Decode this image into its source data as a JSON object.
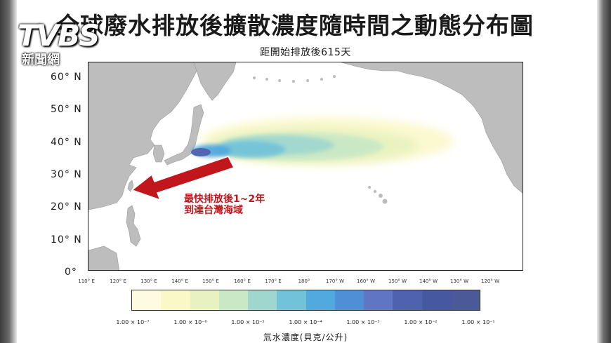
{
  "title": "全球廢水排放後擴散濃度隨時間之動態分布圖",
  "subtitle": "距開始排放後615天",
  "logo": {
    "main": "TVBS",
    "sub": "新聞網"
  },
  "map": {
    "lat_labels": [
      "60° N",
      "50° N",
      "40° N",
      "30° N",
      "20° N",
      "10° N",
      "0°"
    ],
    "lon_labels": [
      "110° E",
      "120° E",
      "130° E",
      "140° E",
      "150° E",
      "160° E",
      "170° E",
      "180°",
      "170° W",
      "160° W",
      "150° W",
      "140° W",
      "130° W",
      "120° W"
    ]
  },
  "annotation": {
    "line1": "最快排放後1~2年",
    "line2": "到達台灣海域",
    "arrow_color": "#c0161c"
  },
  "colorbar": {
    "colors": [
      "#fffbe0",
      "#fbf8c8",
      "#e8f2c0",
      "#c8e8c6",
      "#9fd7cf",
      "#72c2d9",
      "#52a9dd",
      "#4f8fd6",
      "#6075c4",
      "#4f62ad",
      "#46589f",
      "#4a5a99"
    ],
    "tick_labels": [
      "1.00 × 10⁻⁷",
      "1.00 × 10⁻⁶",
      "1.00 × 10⁻⁵",
      "1.00 × 10⁻⁴",
      "1.00 × 10⁻³",
      "1.00 × 10⁻²",
      "1.00 × 10⁻¹"
    ],
    "label": "氚水濃度(貝克/公升)"
  }
}
